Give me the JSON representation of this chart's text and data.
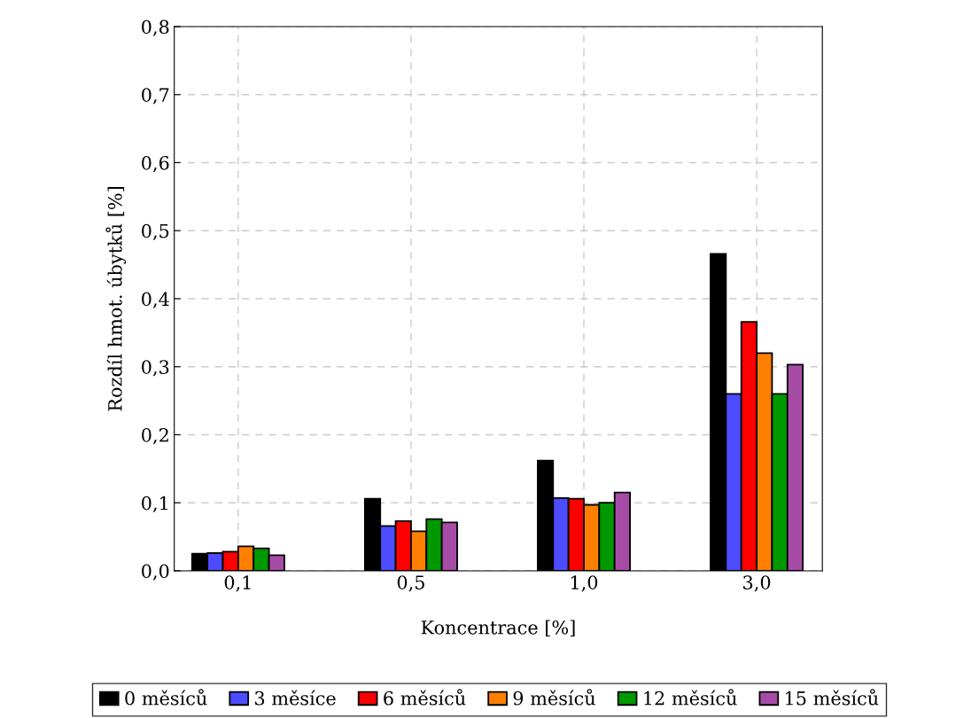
{
  "chart_data": {
    "type": "bar",
    "xlabel": "Koncentrace [%]",
    "ylabel": "Rozdíl hmot. úbytků [%]",
    "categories": [
      "0,1",
      "0,5",
      "1,0",
      "3,0"
    ],
    "series": [
      {
        "name": "0 měsíců",
        "color": "#000000",
        "values": [
          0.025,
          0.106,
          0.162,
          0.466
        ]
      },
      {
        "name": "3 měsíce",
        "color": "#4d4dff",
        "values": [
          0.026,
          0.066,
          0.107,
          0.26
        ]
      },
      {
        "name": "6 měsíců",
        "color": "#ff0000",
        "values": [
          0.028,
          0.073,
          0.106,
          0.366
        ]
      },
      {
        "name": "9 měsíců",
        "color": "#ff8000",
        "values": [
          0.036,
          0.058,
          0.097,
          0.32
        ]
      },
      {
        "name": "12 měsíců",
        "color": "#009900",
        "values": [
          0.033,
          0.076,
          0.1,
          0.26
        ]
      },
      {
        "name": "15 měsíců",
        "color": "#a64ca6",
        "values": [
          0.023,
          0.071,
          0.115,
          0.303
        ]
      }
    ],
    "ylim": [
      0,
      0.8
    ],
    "yticks": [
      {
        "value": 0,
        "label": "0,0"
      },
      {
        "value": 0.1,
        "label": "0,1"
      },
      {
        "value": 0.2,
        "label": "0,2"
      },
      {
        "value": 0.3,
        "label": "0,3"
      },
      {
        "value": 0.4,
        "label": "0,4"
      },
      {
        "value": 0.5,
        "label": "0,5"
      },
      {
        "value": 0.6,
        "label": "0,6"
      },
      {
        "value": 0.7,
        "label": "0,7"
      },
      {
        "value": 0.8,
        "label": "0,8"
      }
    ],
    "grid": true,
    "legend": "bottom"
  }
}
